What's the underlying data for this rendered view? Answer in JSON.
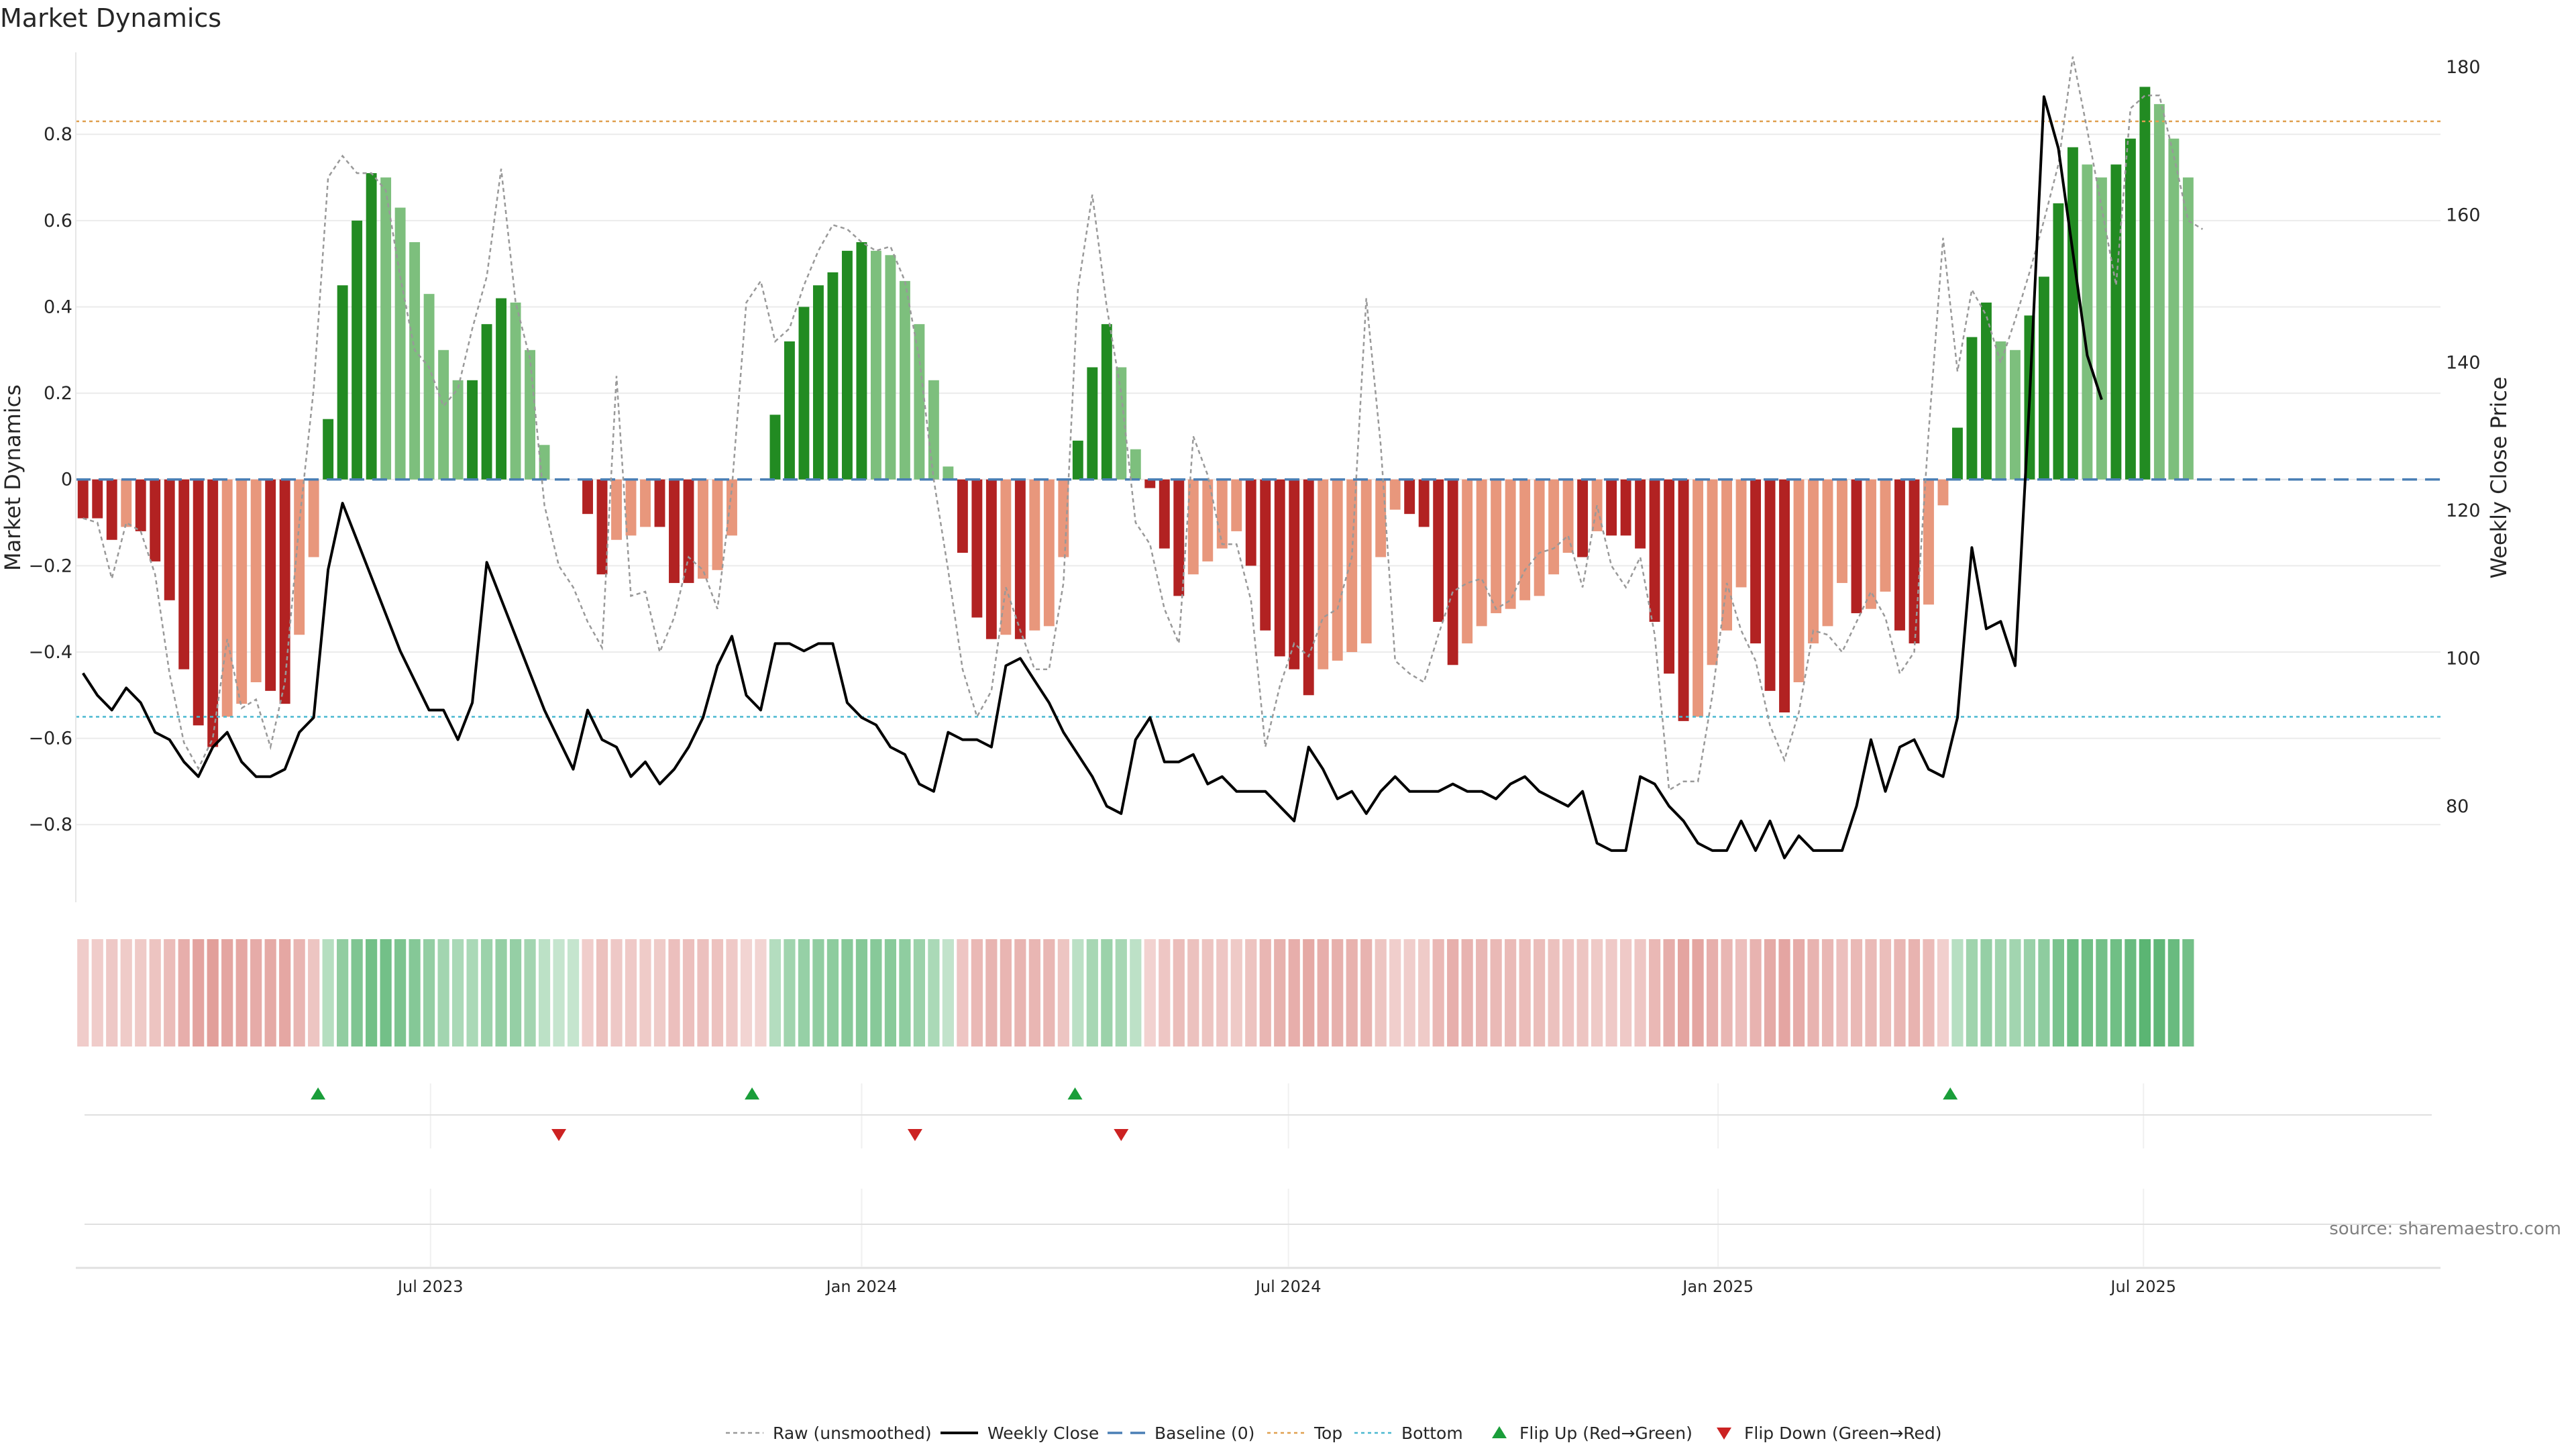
{
  "chart_data": {
    "type": "bar",
    "title": "Market Dynamics",
    "ylabel_left": "Market Dynamics",
    "ylabel_right": "Weekly Close Price",
    "ylim_left": [
      -0.98,
      0.99
    ],
    "ylim_right": [
      67,
      182
    ],
    "left_ticks": [
      -0.8,
      -0.6,
      -0.4,
      -0.2,
      0,
      0.2,
      0.4,
      0.6,
      0.8
    ],
    "left_tick_labels": [
      "−0.8",
      "−0.6",
      "−0.4",
      "−0.2",
      "0",
      "0.2",
      "0.4",
      "0.6",
      "0.8"
    ],
    "right_ticks": [
      80,
      100,
      120,
      140,
      160,
      180
    ],
    "right_tick_labels": [
      "80",
      "100",
      "120",
      "140",
      "160",
      "180"
    ],
    "x_tick_labels": [
      "Jul 2023",
      "Jan 2024",
      "Jul 2024",
      "Jan 2025",
      "Jul 2025"
    ],
    "x_tick_weeks": [
      24.6,
      54.5,
      84.1,
      113.9,
      143.4
    ],
    "top_level": 0.83,
    "bottom_level": -0.55,
    "baseline": 0,
    "weeks": 164,
    "dynamics": [
      -0.09,
      -0.09,
      -0.14,
      -0.11,
      -0.12,
      -0.19,
      -0.28,
      -0.44,
      -0.57,
      -0.62,
      -0.55,
      -0.52,
      -0.47,
      -0.49,
      -0.52,
      -0.36,
      -0.18,
      0.14,
      0.45,
      0.6,
      0.71,
      0.7,
      0.63,
      0.55,
      0.43,
      0.3,
      0.23,
      0.23,
      0.36,
      0.42,
      0.41,
      0.3,
      0.08,
      0,
      0,
      -0.08,
      -0.22,
      -0.14,
      -0.13,
      -0.11,
      -0.11,
      -0.24,
      -0.24,
      -0.23,
      -0.21,
      -0.13,
      0,
      0,
      0.15,
      0.32,
      0.4,
      0.45,
      0.48,
      0.53,
      0.55,
      0.53,
      0.52,
      0.46,
      0.36,
      0.23,
      0.03,
      -0.17,
      -0.32,
      -0.37,
      -0.36,
      -0.37,
      -0.35,
      -0.34,
      -0.18,
      0.09,
      0.26,
      0.36,
      0.26,
      0.07,
      -0.02,
      -0.16,
      -0.27,
      -0.22,
      -0.19,
      -0.16,
      -0.12,
      -0.2,
      -0.35,
      -0.41,
      -0.44,
      -0.5,
      -0.44,
      -0.42,
      -0.4,
      -0.38,
      -0.18,
      -0.07,
      -0.08,
      -0.11,
      -0.33,
      -0.43,
      -0.38,
      -0.34,
      -0.31,
      -0.3,
      -0.28,
      -0.27,
      -0.22,
      -0.17,
      -0.18,
      -0.12,
      -0.13,
      -0.13,
      -0.16,
      -0.33,
      -0.45,
      -0.56,
      -0.55,
      -0.43,
      -0.35,
      -0.25,
      -0.38,
      -0.49,
      -0.54,
      -0.47,
      -0.38,
      -0.34,
      -0.24,
      -0.31,
      -0.3,
      -0.26,
      -0.35,
      -0.38,
      -0.29,
      -0.06,
      0.12,
      0.33,
      0.41,
      0.32,
      0.3,
      0.38,
      0.47,
      0.64,
      0.77,
      0.73,
      0.7,
      0.73,
      0.79,
      0.91,
      0.87,
      0.79,
      0.7
    ],
    "raw": [
      -0.09,
      -0.1,
      -0.23,
      -0.1,
      -0.12,
      -0.22,
      -0.45,
      -0.61,
      -0.67,
      -0.6,
      -0.37,
      -0.53,
      -0.51,
      -0.62,
      -0.47,
      -0.1,
      0.21,
      0.7,
      0.75,
      0.71,
      0.71,
      0.67,
      0.47,
      0.3,
      0.26,
      0.17,
      0.21,
      0.35,
      0.47,
      0.72,
      0.41,
      0.28,
      -0.06,
      -0.2,
      -0.25,
      -0.33,
      -0.39,
      0.24,
      -0.27,
      -0.26,
      -0.4,
      -0.32,
      -0.18,
      -0.21,
      -0.3,
      -0.02,
      0.41,
      0.46,
      0.32,
      0.35,
      0.45,
      0.53,
      0.59,
      0.58,
      0.55,
      0.53,
      0.54,
      0.46,
      0.28,
      0.0,
      -0.21,
      -0.44,
      -0.55,
      -0.49,
      -0.25,
      -0.35,
      -0.44,
      -0.44,
      -0.24,
      0.44,
      0.66,
      0.4,
      0.2,
      -0.1,
      -0.15,
      -0.3,
      -0.38,
      0.1,
      0.01,
      -0.15,
      -0.15,
      -0.28,
      -0.62,
      -0.48,
      -0.38,
      -0.41,
      -0.32,
      -0.3,
      -0.18,
      0.42,
      0.08,
      -0.42,
      -0.45,
      -0.47,
      -0.36,
      -0.26,
      -0.24,
      -0.23,
      -0.3,
      -0.28,
      -0.21,
      -0.17,
      -0.16,
      -0.13,
      -0.25,
      -0.06,
      -0.2,
      -0.25,
      -0.18,
      -0.36,
      -0.72,
      -0.7,
      -0.7,
      -0.5,
      -0.24,
      -0.35,
      -0.42,
      -0.57,
      -0.65,
      -0.54,
      -0.35,
      -0.36,
      -0.4,
      -0.33,
      -0.26,
      -0.32,
      -0.45,
      -0.4,
      0.11,
      0.56,
      0.25,
      0.44,
      0.38,
      0.27,
      0.37,
      0.48,
      0.6,
      0.73,
      0.98,
      0.81,
      0.63,
      0.45,
      0.86,
      0.89,
      0.89,
      0.75,
      0.6,
      0.58
    ],
    "close": [
      98,
      95,
      93,
      96,
      94,
      90,
      89,
      86,
      84,
      88,
      90,
      86,
      84,
      84,
      85,
      90,
      92,
      112,
      121,
      116,
      111,
      106,
      101,
      97,
      93,
      93,
      89,
      94,
      113,
      108,
      103,
      98,
      93,
      89,
      85,
      93,
      89,
      88,
      84,
      86,
      83,
      85,
      88,
      92,
      99,
      103,
      95,
      93,
      102,
      102,
      101,
      102,
      102,
      94,
      92,
      91,
      88,
      87,
      83,
      82,
      90,
      89,
      89,
      88,
      99,
      100,
      97,
      94,
      90,
      87,
      84,
      80,
      79,
      89,
      92,
      86,
      86,
      87,
      83,
      84,
      82,
      82,
      82,
      80,
      78,
      88,
      85,
      81,
      82,
      79,
      82,
      84,
      82,
      82,
      82,
      83,
      82,
      82,
      81,
      83,
      84,
      82,
      81,
      80,
      82,
      75,
      74,
      74,
      84,
      83,
      80,
      78,
      75,
      74,
      74,
      78,
      74,
      78,
      73,
      76,
      74,
      74,
      74,
      80,
      89,
      82,
      88,
      89,
      85,
      84,
      92,
      115,
      104,
      105,
      99,
      135,
      176,
      169,
      155,
      141,
      135
    ],
    "heat_strip": {
      "negative_color": "#d4706a",
      "positive_color": "#3ea85a"
    },
    "flips": {
      "up_weeks": [
        16.8,
        46.9,
        69.3,
        130.0
      ],
      "down_weeks": [
        33.5,
        58.2,
        72.5
      ]
    },
    "legend": [
      "Raw (unsmoothed)",
      "Weekly Close",
      "Baseline (0)",
      "Top",
      "Bottom",
      "Flip Up (Red→Green)",
      "Flip Down (Green→Red)"
    ],
    "colors": {
      "rising_positive": "#228b22",
      "falling_positive": "#7dbf7d",
      "falling_negative": "#b22222",
      "rising_negative": "#e8977c",
      "raw_line": "#999999",
      "close_line": "#000000",
      "baseline": "#4a7fb5",
      "top": "#e0a050",
      "bottom": "#4ab8d0",
      "flip_up": "#1a9e3a",
      "flip_down": "#cc2222"
    },
    "source": "source: sharemaestro.com"
  }
}
